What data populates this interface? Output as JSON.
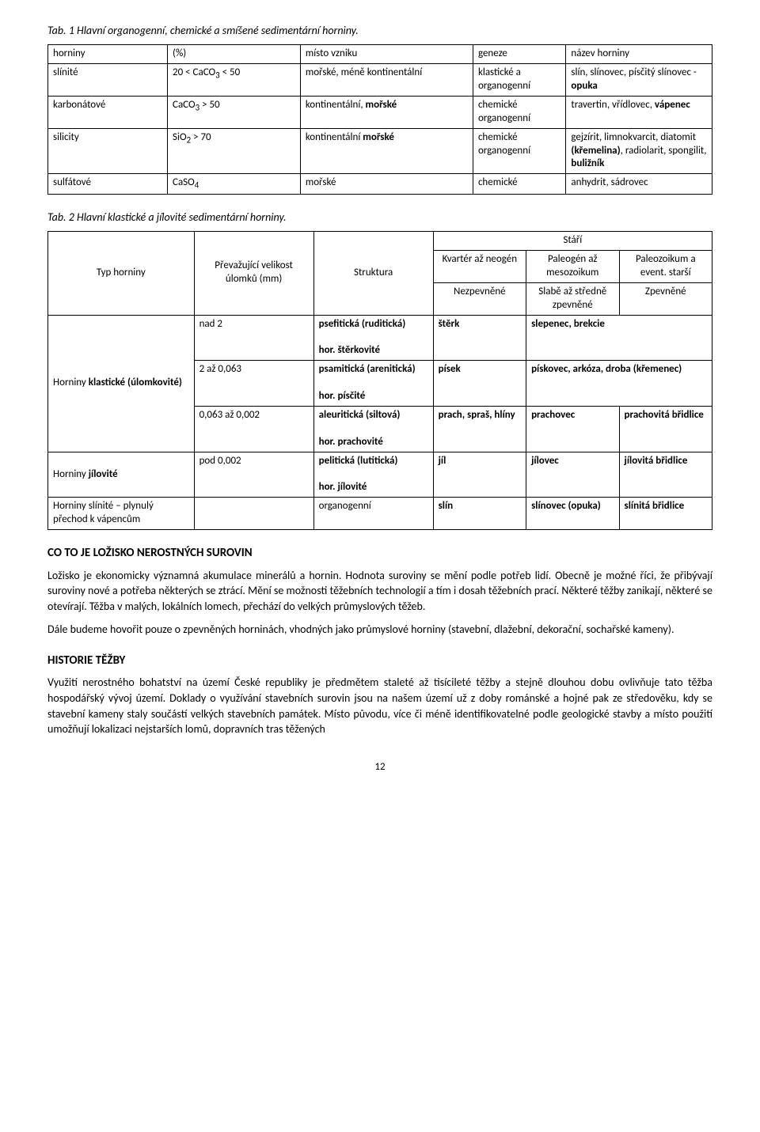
{
  "table1": {
    "caption": "Tab. 1 Hlavní organogenní, chemické a smíšené sedimentární horniny.",
    "headers": [
      "horniny",
      "(%)",
      "místo vzniku",
      "geneze",
      "název horniny"
    ],
    "rows": [
      {
        "c1": "slínité",
        "c2_pre": "20 < CaCO",
        "c2_sub": "3",
        "c2_post": " < 50",
        "c3_a": "mořské, méně ",
        "c3_b": "kontinentální",
        "c4": "klastické a organogenní",
        "c5_a": "slín, slínovec, písčitý ",
        "c5_b": "slínovec - ",
        "c5_c": "opuka"
      },
      {
        "c1": "karbonátové",
        "c2_pre": "CaCO",
        "c2_sub": "3",
        "c2_post": " > 50",
        "c3_a": "kontinentální, ",
        "c3_b": "mořské",
        "c4": "chemické organogenní",
        "c5_a": "travertin, vřídlovec, ",
        "c5_b": "vápenec"
      },
      {
        "c1": "silicity",
        "c2_pre": "SiO",
        "c2_sub": "2",
        "c2_post": " > 70",
        "c3_a": "kontinentální ",
        "c3_b": "mořské",
        "c4": "chemické organogenní",
        "c5_a": "gejzírit, limnokvarcit, diatomit ",
        "c5_b": "(křemelina)",
        "c5_c": ", radiolarit, spongilit, ",
        "c5_d": "buližník"
      },
      {
        "c1": "sulfátové",
        "c2_pre": "CaSO",
        "c2_sub": "4",
        "c2_post": "",
        "c3_a": "mořské",
        "c4": "chemické",
        "c5_a": "anhydrit, sádrovec"
      }
    ]
  },
  "table2": {
    "caption": "Tab. 2 Hlavní klastické a jílovité sedimentární horniny.",
    "h_stari": "Stáří",
    "h_typ": "Typ horniny",
    "h_vel": "Převažující velikost úlomků (mm)",
    "h_str": "Struktura",
    "h_a1": "Kvartér až neogén",
    "h_b1": "Paleogén až mesozoikum",
    "h_c1": "Paleozoikum a event. starší",
    "h_a2": "Nezpevněné",
    "h_b2": "Slabě až středně zpevněné",
    "h_c2": "Zpevněné",
    "group1_label_a": "Horniny ",
    "group1_label_b": "klastické (úlomkovité)",
    "group2_label_a": "Horniny ",
    "group2_label_b": "jílovité",
    "group3_label": "Horniny slínité – plynulý přechod k vápencům",
    "r1": {
      "vel": "nad 2",
      "str_a": "psefitická (ruditická)",
      "str_b": "hor. štěrkovité",
      "a": "štěrk",
      "b": "slepenec, brekcie",
      "c": ""
    },
    "r2": {
      "vel": "2 až 0,063",
      "str_a": "psamitická (arenitická)",
      "str_b": "hor. písčité",
      "a": "písek",
      "b_a": "pískovec, arkóza, droba ",
      "b_b": "(křemenec)",
      "c": ""
    },
    "r3": {
      "vel": "0,063 až 0,002",
      "str_a": "aleuritická (siltová)",
      "str_b": "hor. prachovité",
      "a": "prach, spraš, hlíny",
      "b": "prachovec",
      "c": "prachovitá břidlice"
    },
    "r4": {
      "vel": "pod 0,002",
      "str_a": "pelitická (lutitická)",
      "str_b": "hor. jílovité",
      "a": "jíl",
      "b": "jílovec",
      "c": "jílovitá břidlice"
    },
    "r5": {
      "str": "organogenní",
      "a": "slín",
      "b_a": "slínovec ",
      "b_b": "(opuka)",
      "c": "slínitá břidlice"
    }
  },
  "section1": {
    "title": "CO TO JE LOŽISKO NEROSTNÝCH SUROVIN",
    "p1": "Ložisko je ekonomicky významná akumulace minerálů a hornin. Hodnota suroviny se mění podle potřeb lidí. Obecně je možné říci, že přibývají suroviny nové a potřeba některých se ztrácí. Mění se možnosti těžebních technologií a tím i dosah těžebních prací. Některé těžby zanikají, některé se otevírají. Těžba v malých, lokálních lomech, přechází do velkých průmyslových těžeb.",
    "p2": "Dále budeme hovořit pouze o zpevněných horninách, vhodných jako průmyslové horniny (stavební, dlažební, dekorační, sochařské kameny)."
  },
  "section2": {
    "title": "HISTORIE TĚŽBY",
    "p1": "Využití nerostného bohatství na území České republiky je předmětem staleté až tisícileté těžby a stejně dlouhou dobu ovlivňuje tato těžba hospodářský vývoj území. Doklady o využívání stavebních surovin jsou na našem území už z doby románské a hojné pak ze středověku, kdy se stavební kameny staly součástí velkých stavebních památek. Místo původu, více či méně identifikovatelné podle geologické stavby a místo použití umožňují lokalizaci nejstarších lomů, dopravních tras těžených"
  },
  "pagenum": "12"
}
